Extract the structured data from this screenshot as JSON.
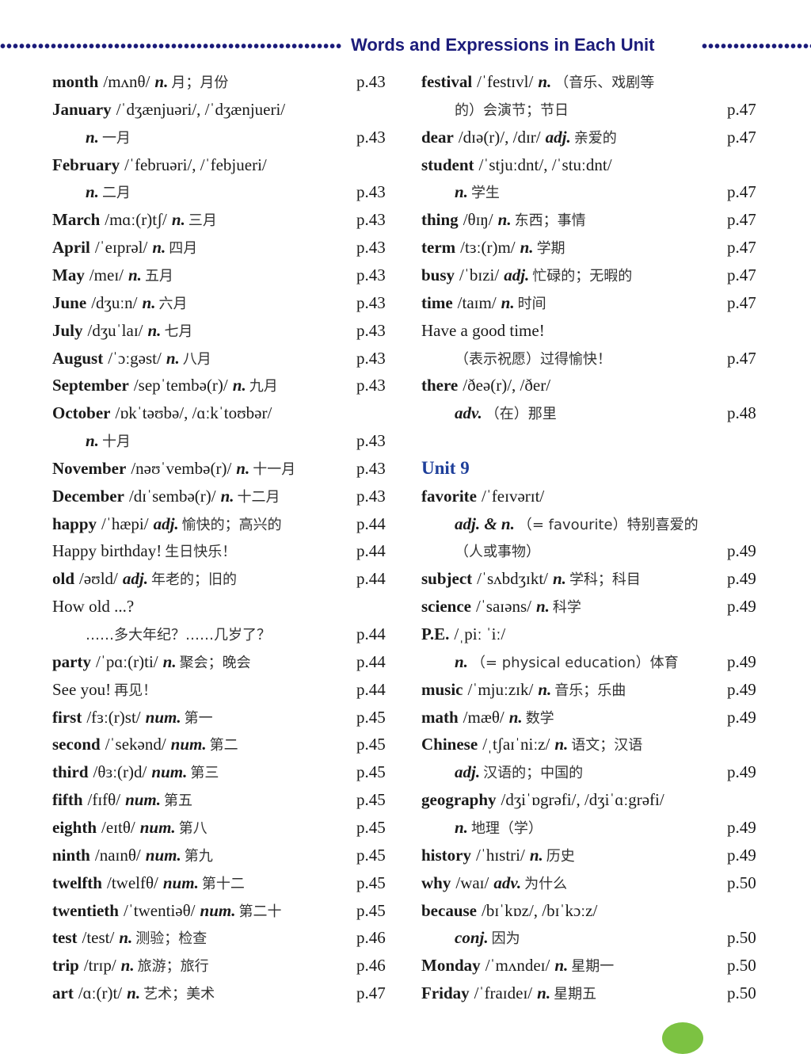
{
  "header": {
    "title": "Words and Expressions in Each Unit"
  },
  "columns": [
    [
      {
        "w": "month",
        "ph": "/mʌnθ/",
        "pos": "n.",
        "cn": "月；月份",
        "p": "p.43"
      },
      {
        "w": "January",
        "ph": "/ˈdʒænjuəri/, /ˈdʒænjueri/"
      },
      {
        "indent": true,
        "pos": "n.",
        "cn": "一月",
        "p": "p.43"
      },
      {
        "w": "February",
        "ph": "/ˈfebruəri/, /ˈfebjueri/"
      },
      {
        "indent": true,
        "pos": "n.",
        "cn": "二月",
        "p": "p.43"
      },
      {
        "w": "March",
        "ph": "/mɑː(r)tʃ/",
        "pos": "n.",
        "cn": "三月",
        "p": "p.43"
      },
      {
        "w": "April",
        "ph": "/ˈeɪprəl/",
        "pos": "n.",
        "cn": "四月",
        "p": "p.43"
      },
      {
        "w": "May",
        "ph": "/meɪ/",
        "pos": "n.",
        "cn": "五月",
        "p": "p.43"
      },
      {
        "w": "June",
        "ph": "/dʒuːn/",
        "pos": "n.",
        "cn": "六月",
        "p": "p.43"
      },
      {
        "w": "July",
        "ph": "/dʒuˈlaɪ/",
        "pos": "n.",
        "cn": "七月",
        "p": "p.43"
      },
      {
        "w": "August",
        "ph": "/ˈɔːgəst/",
        "pos": "n.",
        "cn": "八月",
        "p": "p.43"
      },
      {
        "w": "September",
        "ph": "/sepˈtembə(r)/",
        "pos": "n.",
        "cn": "九月",
        "p": "p.43"
      },
      {
        "w": "October",
        "ph": "/ɒkˈtəʊbə/, /ɑːkˈtoʊbər/"
      },
      {
        "indent": true,
        "pos": "n.",
        "cn": "十月",
        "p": "p.43"
      },
      {
        "w": "November",
        "ph": "/nəʊˈvembə(r)/",
        "pos": "n.",
        "cn": "十一月",
        "p": "p.43"
      },
      {
        "w": "December",
        "ph": "/dɪˈsembə(r)/",
        "pos": "n.",
        "cn": "十二月",
        "p": "p.43"
      },
      {
        "w": "happy",
        "ph": "/ˈhæpi/",
        "pos": "adj.",
        "cn": "愉快的；高兴的",
        "p": "p.44"
      },
      {
        "w": "Happy birthday!",
        "plain": true,
        "cn": "生日快乐！",
        "p": "p.44"
      },
      {
        "w": "old",
        "ph": "/əʊld/",
        "pos": "adj.",
        "cn": "年老的；旧的",
        "p": "p.44"
      },
      {
        "w": "How old ...?",
        "plain": true
      },
      {
        "indent": true,
        "cn": "……多大年纪？……几岁了？",
        "p": "p.44"
      },
      {
        "w": "party",
        "ph": "/ˈpɑː(r)ti/",
        "pos": "n.",
        "cn": "聚会；晚会",
        "p": "p.44"
      },
      {
        "w": "See you!",
        "plain": true,
        "cn": "再见！",
        "p": "p.44"
      },
      {
        "w": "first",
        "ph": "/fɜː(r)st/",
        "pos": "num.",
        "cn": "第一",
        "p": "p.45"
      },
      {
        "w": "second",
        "ph": "/ˈsekənd/",
        "pos": "num.",
        "cn": "第二",
        "p": "p.45"
      },
      {
        "w": "third",
        "ph": "/θɜː(r)d/",
        "pos": "num.",
        "cn": "第三",
        "p": "p.45"
      },
      {
        "w": "fifth",
        "ph": "/fɪfθ/",
        "pos": "num.",
        "cn": "第五",
        "p": "p.45"
      },
      {
        "w": "eighth",
        "ph": "/eɪtθ/",
        "pos": "num.",
        "cn": "第八",
        "p": "p.45"
      },
      {
        "w": "ninth",
        "ph": "/naɪnθ/",
        "pos": "num.",
        "cn": "第九",
        "p": "p.45"
      },
      {
        "w": "twelfth",
        "ph": "/twelfθ/",
        "pos": "num.",
        "cn": "第十二",
        "p": "p.45"
      },
      {
        "w": "twentieth",
        "ph": "/ˈtwentiəθ/",
        "pos": "num.",
        "cn": "第二十",
        "p": "p.45"
      },
      {
        "w": "test",
        "ph": "/test/",
        "pos": "n.",
        "cn": "测验；检查",
        "p": "p.46"
      },
      {
        "w": "trip",
        "ph": "/trɪp/",
        "pos": "n.",
        "cn": "旅游；旅行",
        "p": "p.46"
      },
      {
        "w": "art",
        "ph": "/ɑː(r)t/",
        "pos": "n.",
        "cn": "艺术；美术",
        "p": "p.47"
      }
    ],
    [
      {
        "w": "festival",
        "ph": "/ˈfestɪvl/",
        "pos": "n.",
        "cn": "（音乐、戏剧等"
      },
      {
        "indent": true,
        "cn": "的）会演节；节日",
        "p": "p.47"
      },
      {
        "w": "dear",
        "ph": "/dɪə(r)/, /dɪr/",
        "pos": "adj.",
        "cn": "亲爱的",
        "p": "p.47"
      },
      {
        "w": "student",
        "ph": "/ˈstjuːdnt/, /ˈstuːdnt/"
      },
      {
        "indent": true,
        "pos": "n.",
        "cn": "学生",
        "p": "p.47"
      },
      {
        "w": "thing",
        "ph": "/θɪŋ/",
        "pos": "n.",
        "cn": "东西；事情",
        "p": "p.47"
      },
      {
        "w": "term",
        "ph": "/tɜː(r)m/",
        "pos": "n.",
        "cn": "学期",
        "p": "p.47"
      },
      {
        "w": "busy",
        "ph": "/ˈbɪzi/",
        "pos": "adj.",
        "cn": "忙碌的；无暇的",
        "p": "p.47"
      },
      {
        "w": "time",
        "ph": "/taɪm/",
        "pos": "n.",
        "cn": "时间",
        "p": "p.47"
      },
      {
        "w": "Have a good time!",
        "plain": true
      },
      {
        "indent": true,
        "cn": "（表示祝愿）过得愉快！",
        "p": "p.47"
      },
      {
        "w": "there",
        "ph": "/ðeə(r)/, /ðer/"
      },
      {
        "indent": true,
        "pos": "adv.",
        "cn": "（在）那里",
        "p": "p.48"
      },
      {},
      {
        "unit": "Unit 9"
      },
      {
        "w": "favorite",
        "ph": "/ˈfeɪvərɪt/"
      },
      {
        "indent": true,
        "pos": "adj. & n.",
        "cn": "（= favourite）特别喜爱的"
      },
      {
        "indent": true,
        "cn": "（人或事物）",
        "p": "p.49"
      },
      {
        "w": "subject",
        "ph": "/ˈsʌbdʒɪkt/",
        "pos": "n.",
        "cn": "学科；科目",
        "p": "p.49"
      },
      {
        "w": "science",
        "ph": "/ˈsaɪəns/",
        "pos": "n.",
        "cn": "科学",
        "p": "p.49"
      },
      {
        "w": "P.E.",
        "ph": "/ˌpiː ˈiː/"
      },
      {
        "indent": true,
        "pos": "n.",
        "cn": "（= physical education）体育",
        "p": "p.49"
      },
      {
        "w": "music",
        "ph": "/ˈmjuːzɪk/",
        "pos": "n.",
        "cn": "音乐；乐曲",
        "p": "p.49"
      },
      {
        "w": "math",
        "ph": "/mæθ/",
        "pos": "n.",
        "cn": "数学",
        "p": "p.49"
      },
      {
        "w": "Chinese",
        "ph": "/ˌtʃaɪˈniːz/",
        "pos": "n.",
        "cn": "语文；汉语"
      },
      {
        "indent": true,
        "pos": "adj.",
        "cn": "汉语的；中国的",
        "p": "p.49"
      },
      {
        "w": "geography",
        "ph": "/dʒiˈɒgrəfi/, /dʒiˈɑːgrəfi/"
      },
      {
        "indent": true,
        "pos": "n.",
        "cn": "地理（学）",
        "p": "p.49"
      },
      {
        "w": "history",
        "ph": "/ˈhɪstri/",
        "pos": "n.",
        "cn": "历史",
        "p": "p.49"
      },
      {
        "w": "why",
        "ph": "/waɪ/",
        "pos": "adv.",
        "cn": "为什么",
        "p": "p.50"
      },
      {
        "w": "because",
        "ph": "/bɪˈkɒz/, /bɪˈkɔːz/"
      },
      {
        "indent": true,
        "pos": "conj.",
        "cn": "因为",
        "p": "p.50"
      },
      {
        "w": "Monday",
        "ph": "/ˈmʌndeɪ/",
        "pos": "n.",
        "cn": "星期一",
        "p": "p.50"
      },
      {
        "w": "Friday",
        "ph": "/ˈfraɪdeɪ/",
        "pos": "n.",
        "cn": "星期五",
        "p": "p.50"
      }
    ]
  ]
}
